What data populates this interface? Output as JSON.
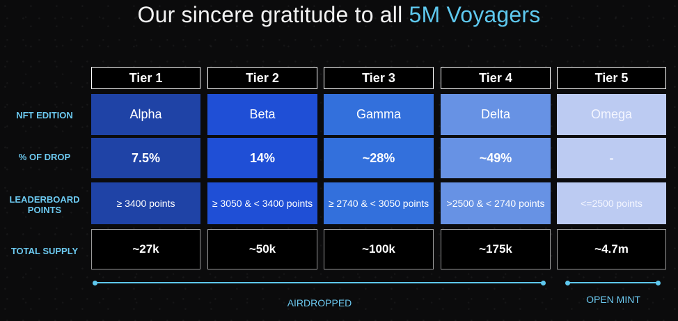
{
  "title": {
    "prefix": "Our sincere gratitude to all ",
    "accent": "5M Voyagers"
  },
  "row_labels": {
    "nft_edition": "NFT EDITION",
    "pct_of_drop": "% OF DROP",
    "leaderboard_points": "LEADERBOARD POINTS",
    "total_supply": "TOTAL SUPPLY"
  },
  "tiers": [
    {
      "name": "Tier 1",
      "edition": "Alpha",
      "pct": "7.5%",
      "points": "≥ 3400 points",
      "supply": "~27k"
    },
    {
      "name": "Tier 2",
      "edition": "Beta",
      "pct": "14%",
      "points": "≥ 3050 & < 3400 points",
      "supply": "~50k"
    },
    {
      "name": "Tier 3",
      "edition": "Gamma",
      "pct": "~28%",
      "points": "≥ 2740 & < 3050 points",
      "supply": "~100k"
    },
    {
      "name": "Tier 4",
      "edition": "Delta",
      "pct": "~49%",
      "points": ">2500 & < 2740 points",
      "supply": "~175k"
    },
    {
      "name": "Tier 5",
      "edition": "Omega",
      "pct": "-",
      "points": "<=2500 points",
      "supply": "~4.7m"
    }
  ],
  "brackets": {
    "airdropped": "AIRDROPPED",
    "open_mint": "OPEN MINT"
  },
  "colors": {
    "accent": "#5ec8ee",
    "tier1": "#1f43a6",
    "tier2": "#1f4fd6",
    "tier3": "#3370dc",
    "tier4": "#6792e4",
    "tier5": "#bccbf2"
  }
}
